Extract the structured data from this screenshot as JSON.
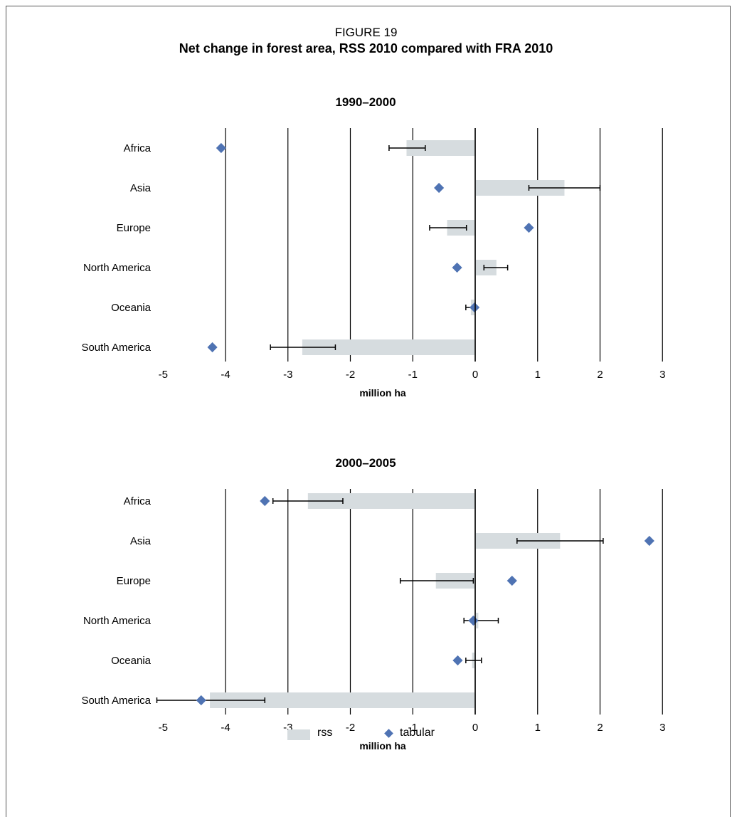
{
  "figure_label": "FIGURE 19",
  "figure_title": "Net change in forest area, RSS 2010 compared with FRA 2010",
  "legend": {
    "rss_label": "rss",
    "tabular_label": "tabular"
  },
  "colors": {
    "rss_bar": "#d6dcdf",
    "tabular_marker": "#4f73b3",
    "gridline": "#000000"
  },
  "chart_data": [
    {
      "type": "bar",
      "title": "1990–2000",
      "xlabel": "million ha",
      "xlim": [
        -5,
        3
      ],
      "xticks": [
        "-5",
        "-4",
        "-3",
        "-2",
        "-1",
        "0",
        "1",
        "2",
        "3"
      ],
      "categories": [
        "Africa",
        "Asia",
        "Europe",
        "North America",
        "Oceania",
        "South America"
      ],
      "series": [
        {
          "name": "rss",
          "kind": "bar",
          "values": [
            -1.1,
            1.43,
            -0.45,
            0.34,
            -0.07,
            -2.77
          ],
          "error_low": [
            -1.38,
            0.86,
            -0.73,
            0.14,
            -0.15,
            -3.28
          ],
          "error_high": [
            -0.8,
            2.0,
            -0.14,
            0.52,
            0.02,
            -2.24
          ]
        },
        {
          "name": "tabular",
          "kind": "marker",
          "values": [
            -4.07,
            -0.58,
            0.86,
            -0.29,
            -0.01,
            -4.21
          ]
        }
      ]
    },
    {
      "type": "bar",
      "title": "2000–2005",
      "xlabel": "million ha",
      "xlim": [
        -5,
        3
      ],
      "xticks": [
        "-5",
        "-4",
        "-3",
        "-2",
        "-1",
        "0",
        "1",
        "2",
        "3"
      ],
      "categories": [
        "Africa",
        "Asia",
        "Europe",
        "North America",
        "Oceania",
        "South America"
      ],
      "series": [
        {
          "name": "rss",
          "kind": "bar",
          "values": [
            -2.68,
            1.36,
            -0.63,
            0.05,
            -0.05,
            -4.25
          ],
          "error_low": [
            -3.24,
            0.67,
            -1.2,
            -0.18,
            -0.15,
            -5.1
          ],
          "error_high": [
            -2.12,
            2.05,
            -0.03,
            0.37,
            0.1,
            -3.37
          ]
        },
        {
          "name": "tabular",
          "kind": "marker",
          "values": [
            -3.37,
            2.79,
            0.59,
            -0.03,
            -0.28,
            -4.39
          ]
        }
      ]
    }
  ]
}
